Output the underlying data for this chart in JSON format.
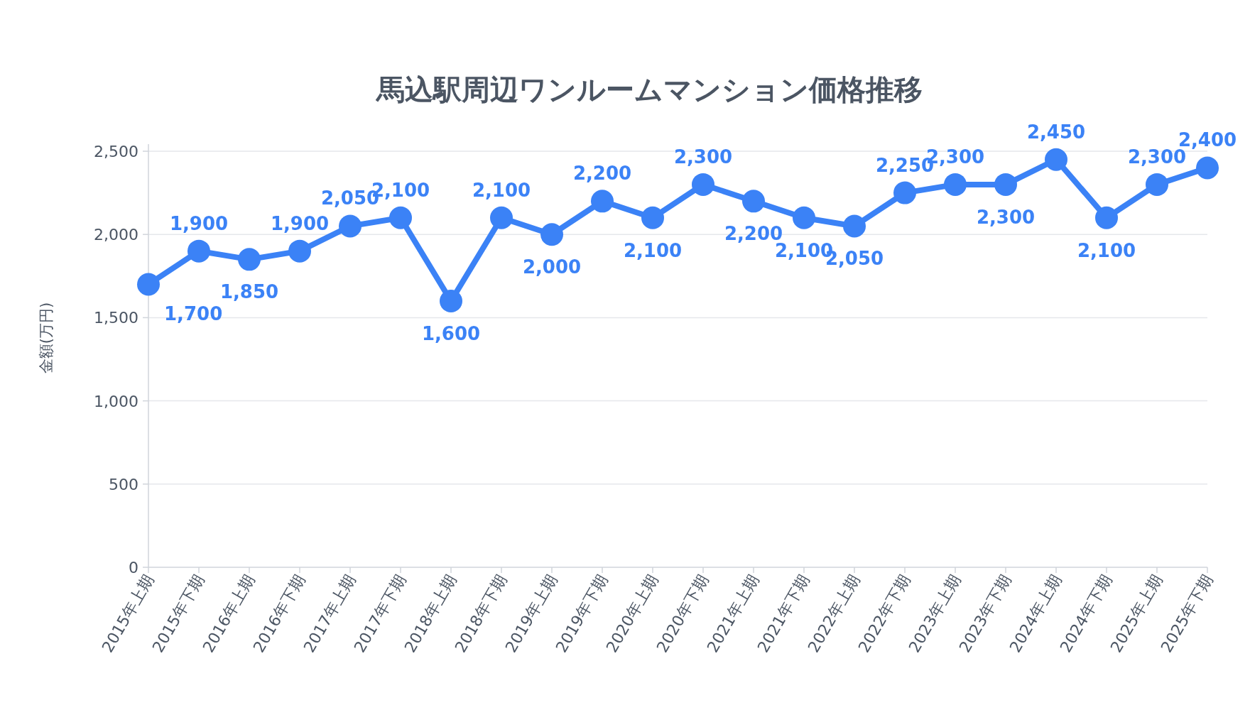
{
  "chart_data": {
    "type": "line",
    "title": "馬込駅周辺ワンルームマンション価格推移",
    "ylabel": "金額(万円)",
    "categories": [
      "2015年上期",
      "2015年下期",
      "2016年上期",
      "2016年下期",
      "2017年上期",
      "2017年下期",
      "2018年上期",
      "2018年下期",
      "2019年上期",
      "2019年下期",
      "2020年上期",
      "2020年下期",
      "2021年上期",
      "2021年下期",
      "2022年上期",
      "2022年下期",
      "2023年上期",
      "2023年下期",
      "2024年上期",
      "2024年下期",
      "2025年上期",
      "2025年下期"
    ],
    "series": [
      {
        "color": "#3b82f6",
        "values": [
          1700,
          1900,
          1850,
          1900,
          2050,
          2100,
          1600,
          2100,
          2000,
          2200,
          2100,
          2300,
          2200,
          2100,
          2050,
          2250,
          2300,
          2300,
          2450,
          2100,
          2300,
          2400
        ],
        "value_labels": [
          "1,700",
          "1,900",
          "1,850",
          "1,900",
          "2,050",
          "2,100",
          "1,600",
          "2,100",
          "2,000",
          "2,200",
          "2,100",
          "2,300",
          "2,200",
          "2,100",
          "2,050",
          "2,250",
          "2,300",
          "2,300",
          "2,450",
          "2,100",
          "2,300",
          "2,400"
        ]
      }
    ],
    "ylim": [
      0,
      2500
    ],
    "yticks": [
      0,
      500,
      {
        "value": 1000,
        "label": "1,000"
      },
      {
        "value": 1500,
        "label": "1,500"
      },
      {
        "value": 2000,
        "label": "2,000"
      },
      {
        "value": 2500,
        "label": "2,500"
      }
    ],
    "grid": "y",
    "marker": "circle",
    "line_style": "solid"
  }
}
